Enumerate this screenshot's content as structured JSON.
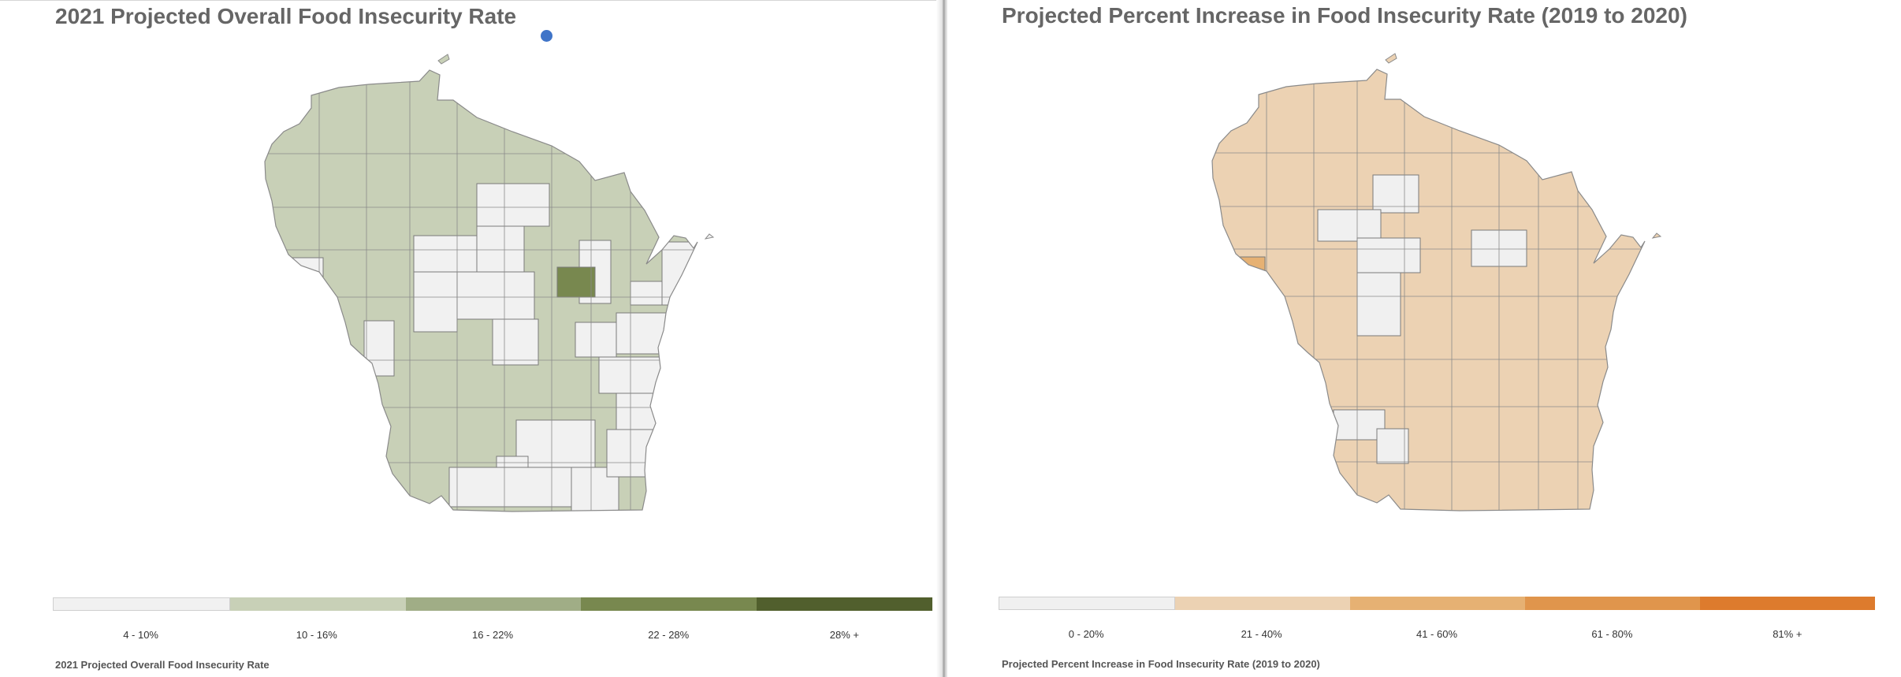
{
  "left": {
    "title": "2021 Projected Overall Food Insecurity Rate",
    "footer": "2021 Projected Overall Food Insecurity Rate",
    "legend": [
      {
        "label": "4 - 10%",
        "color": "#f1f1f1"
      },
      {
        "label": "10 - 16%",
        "color": "#c8d0b7"
      },
      {
        "label": "16 - 22%",
        "color": "#a0ad86"
      },
      {
        "label": "22 - 28%",
        "color": "#78884f"
      },
      {
        "label": "28% +",
        "color": "#515f2d"
      }
    ]
  },
  "right": {
    "title": "Projected Percent Increase in Food Insecurity Rate (2019 to 2020)",
    "footer": "Projected Percent Increase in Food Insecurity Rate (2019 to 2020)",
    "legend": [
      {
        "label": "0 - 20%",
        "color": "#f0f0f0"
      },
      {
        "label": "21 - 40%",
        "color": "#ecd2b3"
      },
      {
        "label": "41 - 60%",
        "color": "#e6b173"
      },
      {
        "label": "61 - 80%",
        "color": "#e0954c"
      },
      {
        "label": "81% +",
        "color": "#dd7b2d"
      }
    ]
  }
}
